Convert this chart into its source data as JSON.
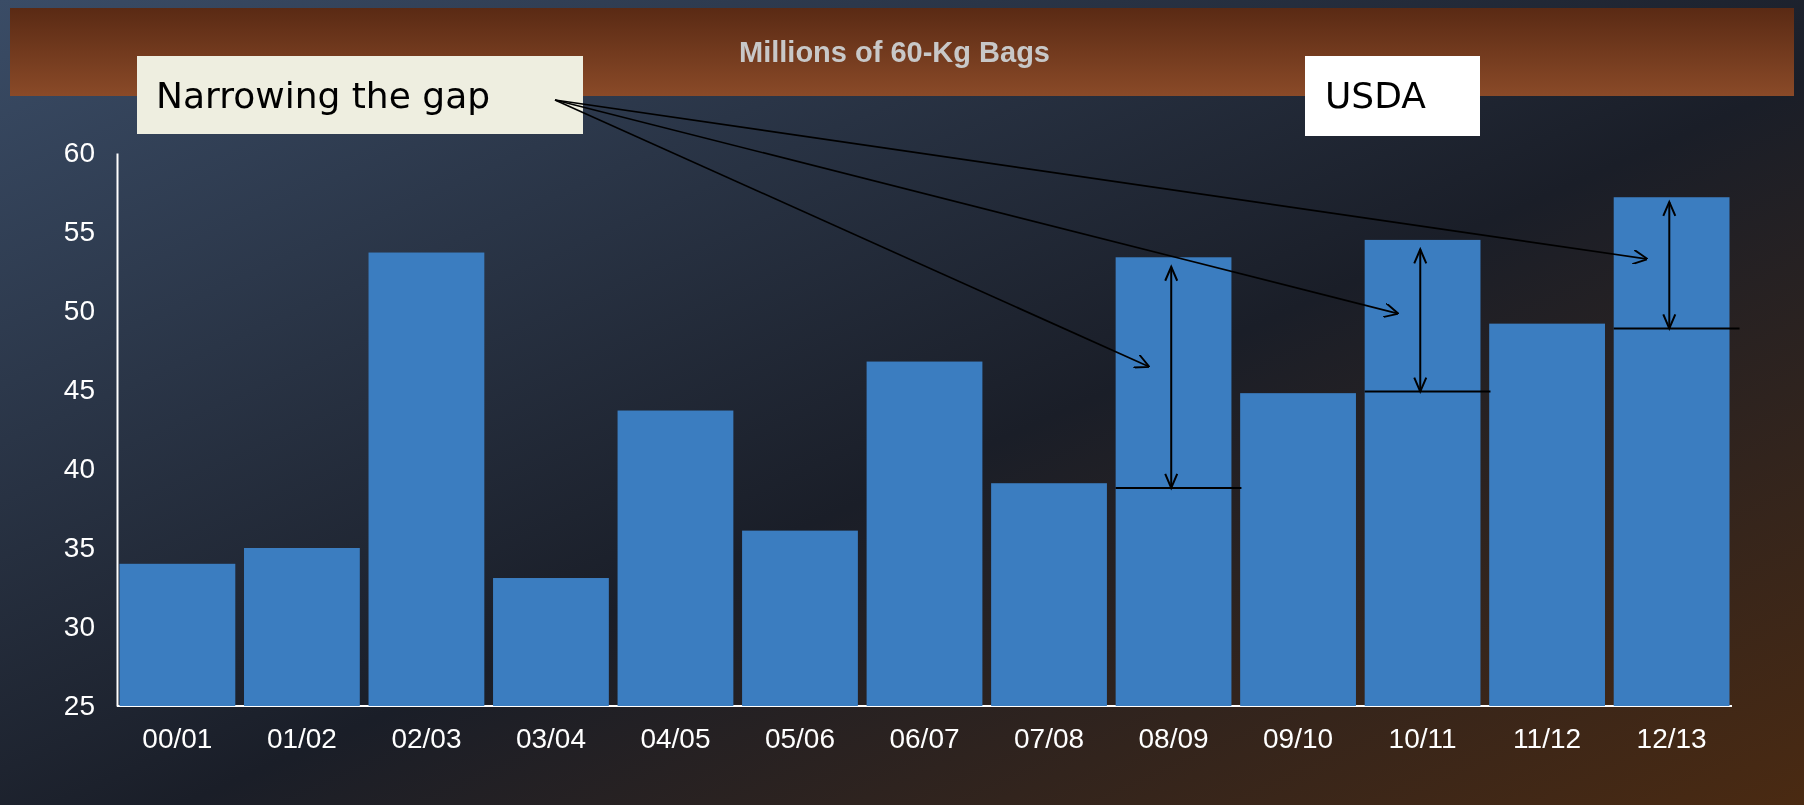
{
  "chart_data": {
    "type": "bar",
    "title": "Millions of 60-Kg Bags",
    "categories": [
      "00/01",
      "01/02",
      "02/03",
      "03/04",
      "04/05",
      "05/06",
      "06/07",
      "07/08",
      "08/09",
      "09/10",
      "10/11",
      "11/12",
      "12/13"
    ],
    "series": [
      {
        "color": "#3b7dc0",
        "values": [
          34.0,
          35.0,
          53.7,
          33.1,
          43.7,
          36.1,
          46.8,
          39.1,
          53.4,
          44.8,
          54.5,
          49.2,
          57.2
        ],
        "errors": [
          null,
          null,
          null,
          null,
          null,
          null,
          null,
          null,
          [
            38.8,
            52.8
          ],
          null,
          [
            44.9,
            53.9
          ],
          null,
          [
            48.9,
            56.9
          ]
        ]
      }
    ],
    "ylim": [
      25,
      60
    ],
    "yticks": [
      25,
      30,
      35,
      40,
      45,
      50,
      55,
      60
    ],
    "annotations": [
      "Narrowing the gap",
      "USDA"
    ]
  }
}
